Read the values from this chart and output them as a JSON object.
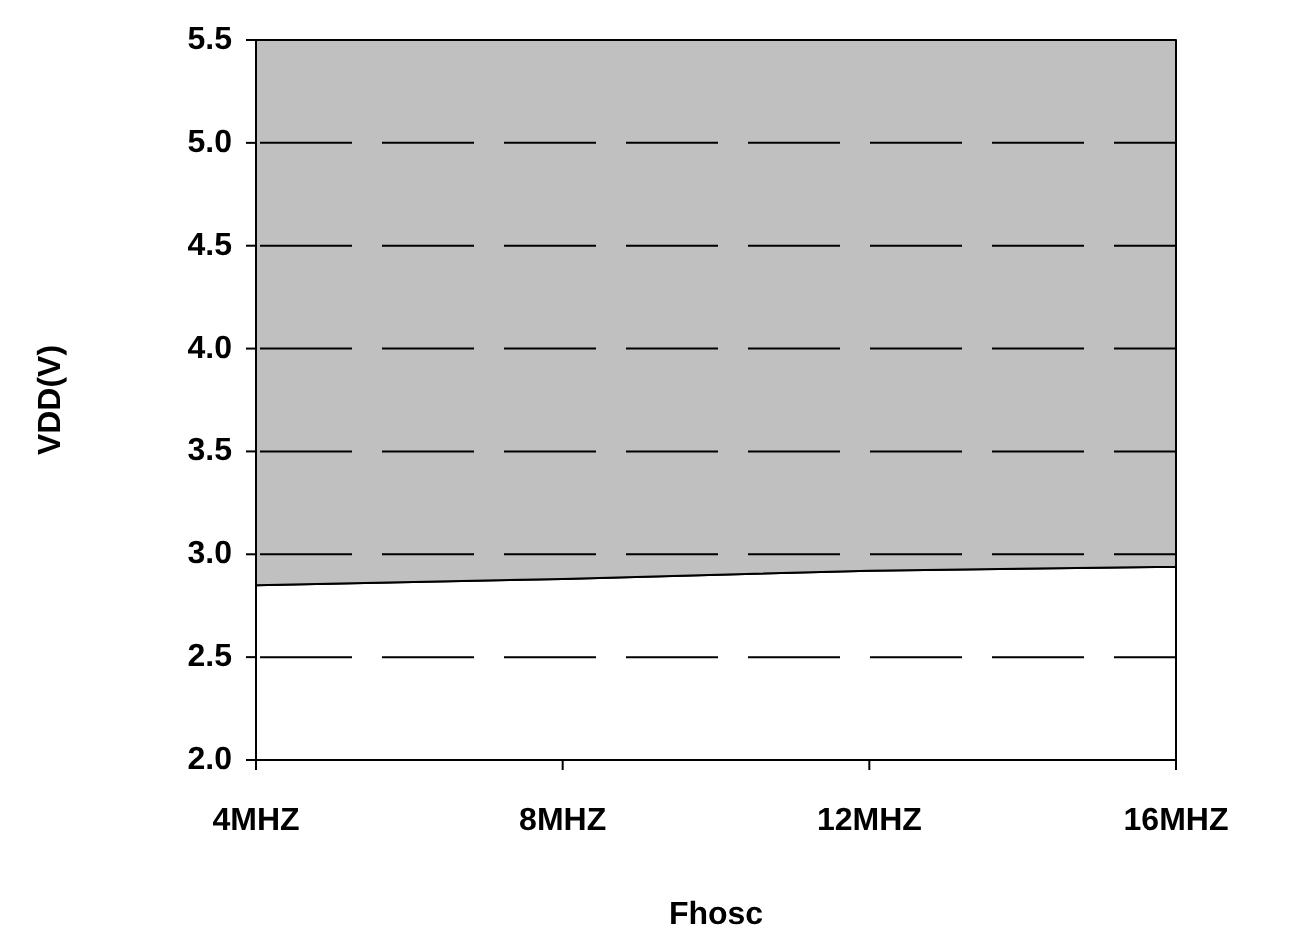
{
  "chart_data": {
    "type": "area",
    "xlabel": "Fhosc",
    "ylabel": "VDD(V)",
    "categories": [
      "4MHZ",
      "8MHZ",
      "12MHZ",
      "16MHZ"
    ],
    "stacked": true,
    "series": [
      {
        "color": "#ffffff",
        "values": [
          2.85,
          2.88,
          2.92,
          2.94
        ]
      },
      {
        "color": "#c0c0c0",
        "values": [
          2.65,
          2.62,
          2.58,
          2.56
        ]
      }
    ],
    "ylim": [
      2.0,
      5.5
    ],
    "yticks": [
      {
        "value": 2.0,
        "label": "2.0"
      },
      {
        "value": 2.5,
        "label": "2.5"
      },
      {
        "value": 3.0,
        "label": "3.0"
      },
      {
        "value": 3.5,
        "label": "3.5"
      },
      {
        "value": 4.0,
        "label": "4.0"
      },
      {
        "value": 4.5,
        "label": "4.5"
      },
      {
        "value": 5.0,
        "label": "5.0"
      },
      {
        "value": 5.5,
        "label": "5.5"
      }
    ],
    "grid": "y",
    "line_style": "solid"
  }
}
